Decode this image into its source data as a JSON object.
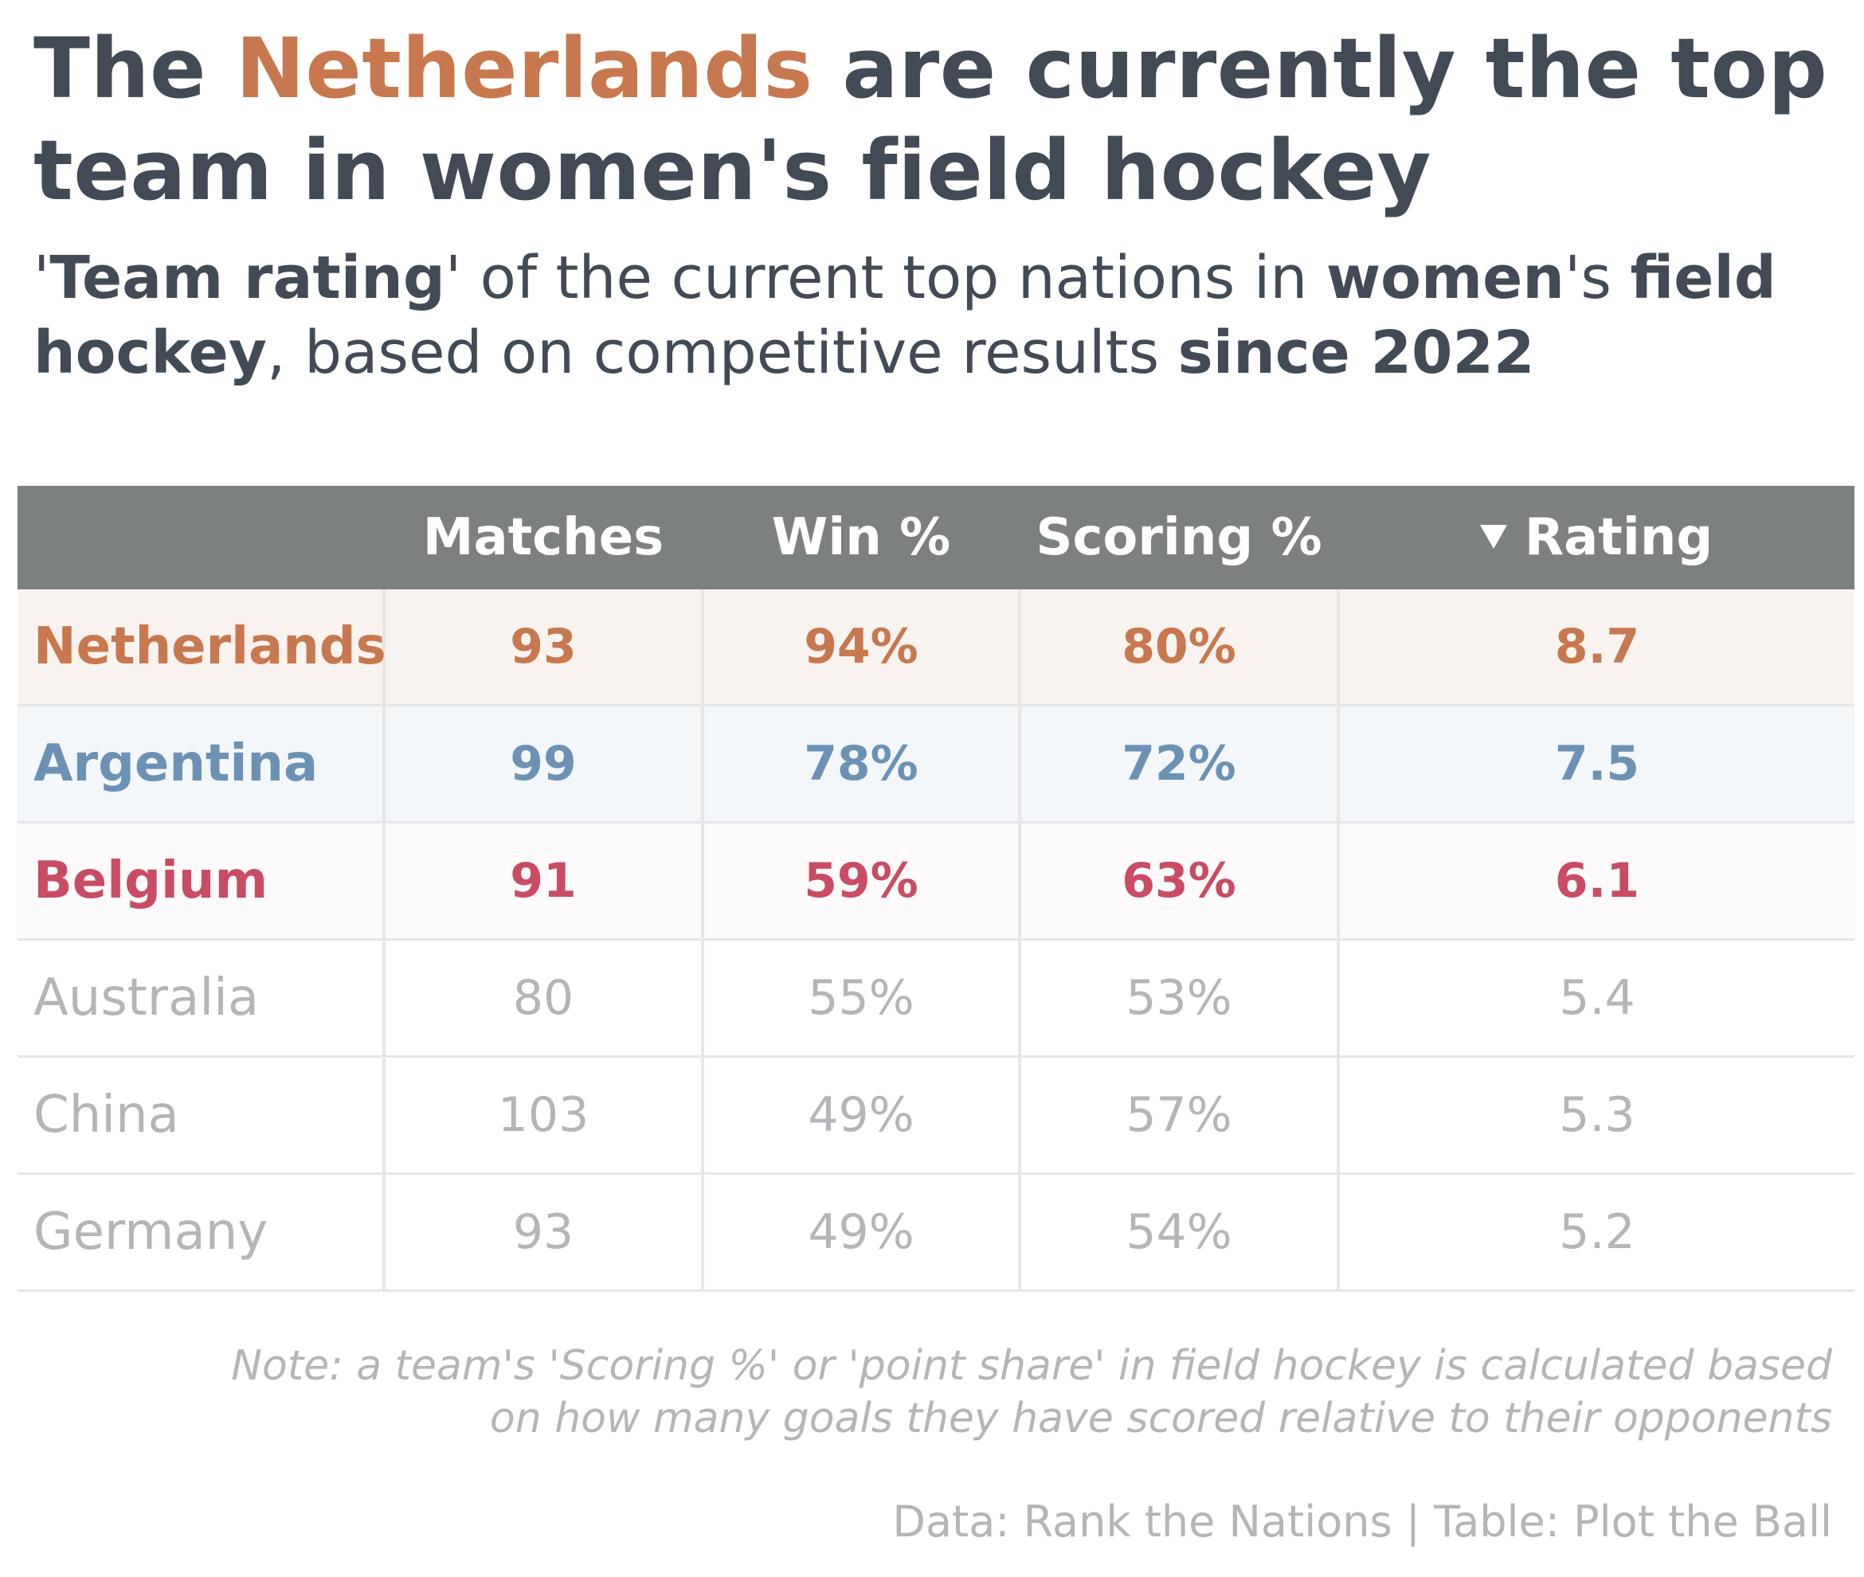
{
  "title": {
    "before": "The ",
    "highlight": "Netherlands",
    "after": " are currently the top team in women's field hockey"
  },
  "subtitle": {
    "part1": "'",
    "bold1": "Team rating",
    "part2": "' of the current top nations in ",
    "bold2": "women",
    "part3": "'s ",
    "bold3": "field hockey",
    "part4": ", based on competitive results ",
    "bold4": "since 2022"
  },
  "chart_data": {
    "type": "table",
    "columns": [
      "",
      "Matches",
      "Win %",
      "Scoring %",
      "Rating"
    ],
    "sort_indicator": "▼",
    "sorted_by": "Rating",
    "rows": [
      {
        "team": "Netherlands",
        "matches": "93",
        "win": "94%",
        "scoring": "80%",
        "rating": "8.7",
        "style": "highlight",
        "color": "#c8784e",
        "bg": "#f9f3ef"
      },
      {
        "team": "Argentina",
        "matches": "99",
        "win": "78%",
        "scoring": "72%",
        "rating": "7.5",
        "style": "highlight",
        "color": "#6b92b5",
        "bg": "#f3f7fa"
      },
      {
        "team": "Belgium",
        "matches": "91",
        "win": "59%",
        "scoring": "63%",
        "rating": "6.1",
        "style": "highlight",
        "color": "#c94c64",
        "bg": "#fdfafb"
      },
      {
        "team": "Australia",
        "matches": "80",
        "win": "55%",
        "scoring": "53%",
        "rating": "5.4",
        "style": "dim",
        "color": "#b3b5b8",
        "bg": "#ffffff"
      },
      {
        "team": "China",
        "matches": "103",
        "win": "49%",
        "scoring": "57%",
        "rating": "5.3",
        "style": "dim",
        "color": "#b3b5b8",
        "bg": "#ffffff"
      },
      {
        "team": "Germany",
        "matches": "93",
        "win": "49%",
        "scoring": "54%",
        "rating": "5.2",
        "style": "dim",
        "color": "#b3b5b8",
        "bg": "#ffffff"
      }
    ]
  },
  "note": {
    "line1": "Note: a team's 'Scoring %' or 'point share' in field hockey is calculated based",
    "line2": "on how many goals they have scored relative to their opponents"
  },
  "source": "Data: Rank the Nations | Table: Plot the Ball",
  "colors": {
    "title": "#414a55",
    "header_bg": "#7c807e",
    "muted": "#b3b5b8",
    "grid": "#e6e6e6"
  }
}
